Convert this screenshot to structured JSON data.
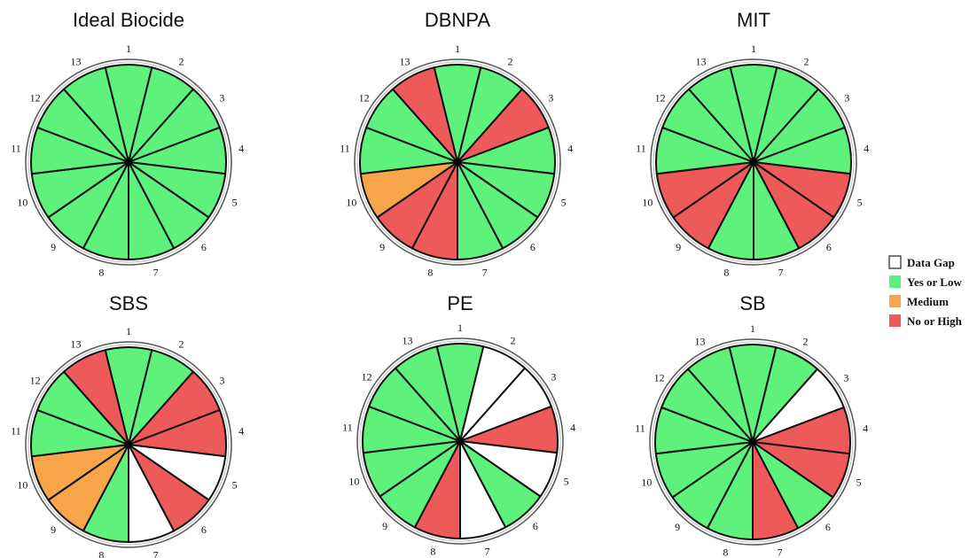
{
  "colors": {
    "data_gap": "#ffffff",
    "yes_or_low": "#5ef27c",
    "medium": "#f7a54a",
    "no_or_high": "#ee5a5a"
  },
  "legend": [
    {
      "key": "data_gap",
      "label": "Data Gap"
    },
    {
      "key": "yes_or_low",
      "label": "Yes or Low"
    },
    {
      "key": "medium",
      "label": "Medium"
    },
    {
      "key": "no_or_high",
      "label": "No or High"
    }
  ],
  "chart_data": [
    {
      "type": "pie",
      "title": "Ideal Biocide",
      "categories": [
        "1",
        "2",
        "3",
        "4",
        "5",
        "6",
        "7",
        "8",
        "9",
        "10",
        "11",
        "12",
        "13"
      ],
      "values": [
        "yes_or_low",
        "yes_or_low",
        "yes_or_low",
        "yes_or_low",
        "yes_or_low",
        "yes_or_low",
        "yes_or_low",
        "yes_or_low",
        "yes_or_low",
        "yes_or_low",
        "yes_or_low",
        "yes_or_low",
        "yes_or_low"
      ]
    },
    {
      "type": "pie",
      "title": "DBNPA",
      "categories": [
        "1",
        "2",
        "3",
        "4",
        "5",
        "6",
        "7",
        "8",
        "9",
        "10",
        "11",
        "12",
        "13"
      ],
      "values": [
        "yes_or_low",
        "yes_or_low",
        "no_or_high",
        "yes_or_low",
        "yes_or_low",
        "yes_or_low",
        "yes_or_low",
        "no_or_high",
        "no_or_high",
        "medium",
        "yes_or_low",
        "yes_or_low",
        "no_or_high"
      ]
    },
    {
      "type": "pie",
      "title": "MIT",
      "categories": [
        "1",
        "2",
        "3",
        "4",
        "5",
        "6",
        "7",
        "8",
        "9",
        "10",
        "11",
        "12",
        "13"
      ],
      "values": [
        "yes_or_low",
        "yes_or_low",
        "yes_or_low",
        "yes_or_low",
        "no_or_high",
        "no_or_high",
        "yes_or_low",
        "yes_or_low",
        "no_or_high",
        "no_or_high",
        "yes_or_low",
        "yes_or_low",
        "yes_or_low"
      ]
    },
    {
      "type": "pie",
      "title": "SBS",
      "categories": [
        "1",
        "2",
        "3",
        "4",
        "5",
        "6",
        "7",
        "8",
        "9",
        "10",
        "11",
        "12",
        "13"
      ],
      "values": [
        "yes_or_low",
        "yes_or_low",
        "no_or_high",
        "no_or_high",
        "data_gap",
        "no_or_high",
        "data_gap",
        "yes_or_low",
        "medium",
        "medium",
        "yes_or_low",
        "yes_or_low",
        "no_or_high"
      ]
    },
    {
      "type": "pie",
      "title": "PE",
      "categories": [
        "1",
        "2",
        "3",
        "4",
        "5",
        "6",
        "7",
        "8",
        "9",
        "10",
        "11",
        "12",
        "13"
      ],
      "values": [
        "yes_or_low",
        "data_gap",
        "data_gap",
        "no_or_high",
        "data_gap",
        "yes_or_low",
        "data_gap",
        "no_or_high",
        "yes_or_low",
        "yes_or_low",
        "yes_or_low",
        "yes_or_low",
        "yes_or_low"
      ]
    },
    {
      "type": "pie",
      "title": "SB",
      "categories": [
        "1",
        "2",
        "3",
        "4",
        "5",
        "6",
        "7",
        "8",
        "9",
        "10",
        "11",
        "12",
        "13"
      ],
      "values": [
        "yes_or_low",
        "yes_or_low",
        "data_gap",
        "no_or_high",
        "no_or_high",
        "yes_or_low",
        "no_or_high",
        "yes_or_low",
        "yes_or_low",
        "yes_or_low",
        "yes_or_low",
        "yes_or_low",
        "yes_or_low"
      ]
    }
  ]
}
